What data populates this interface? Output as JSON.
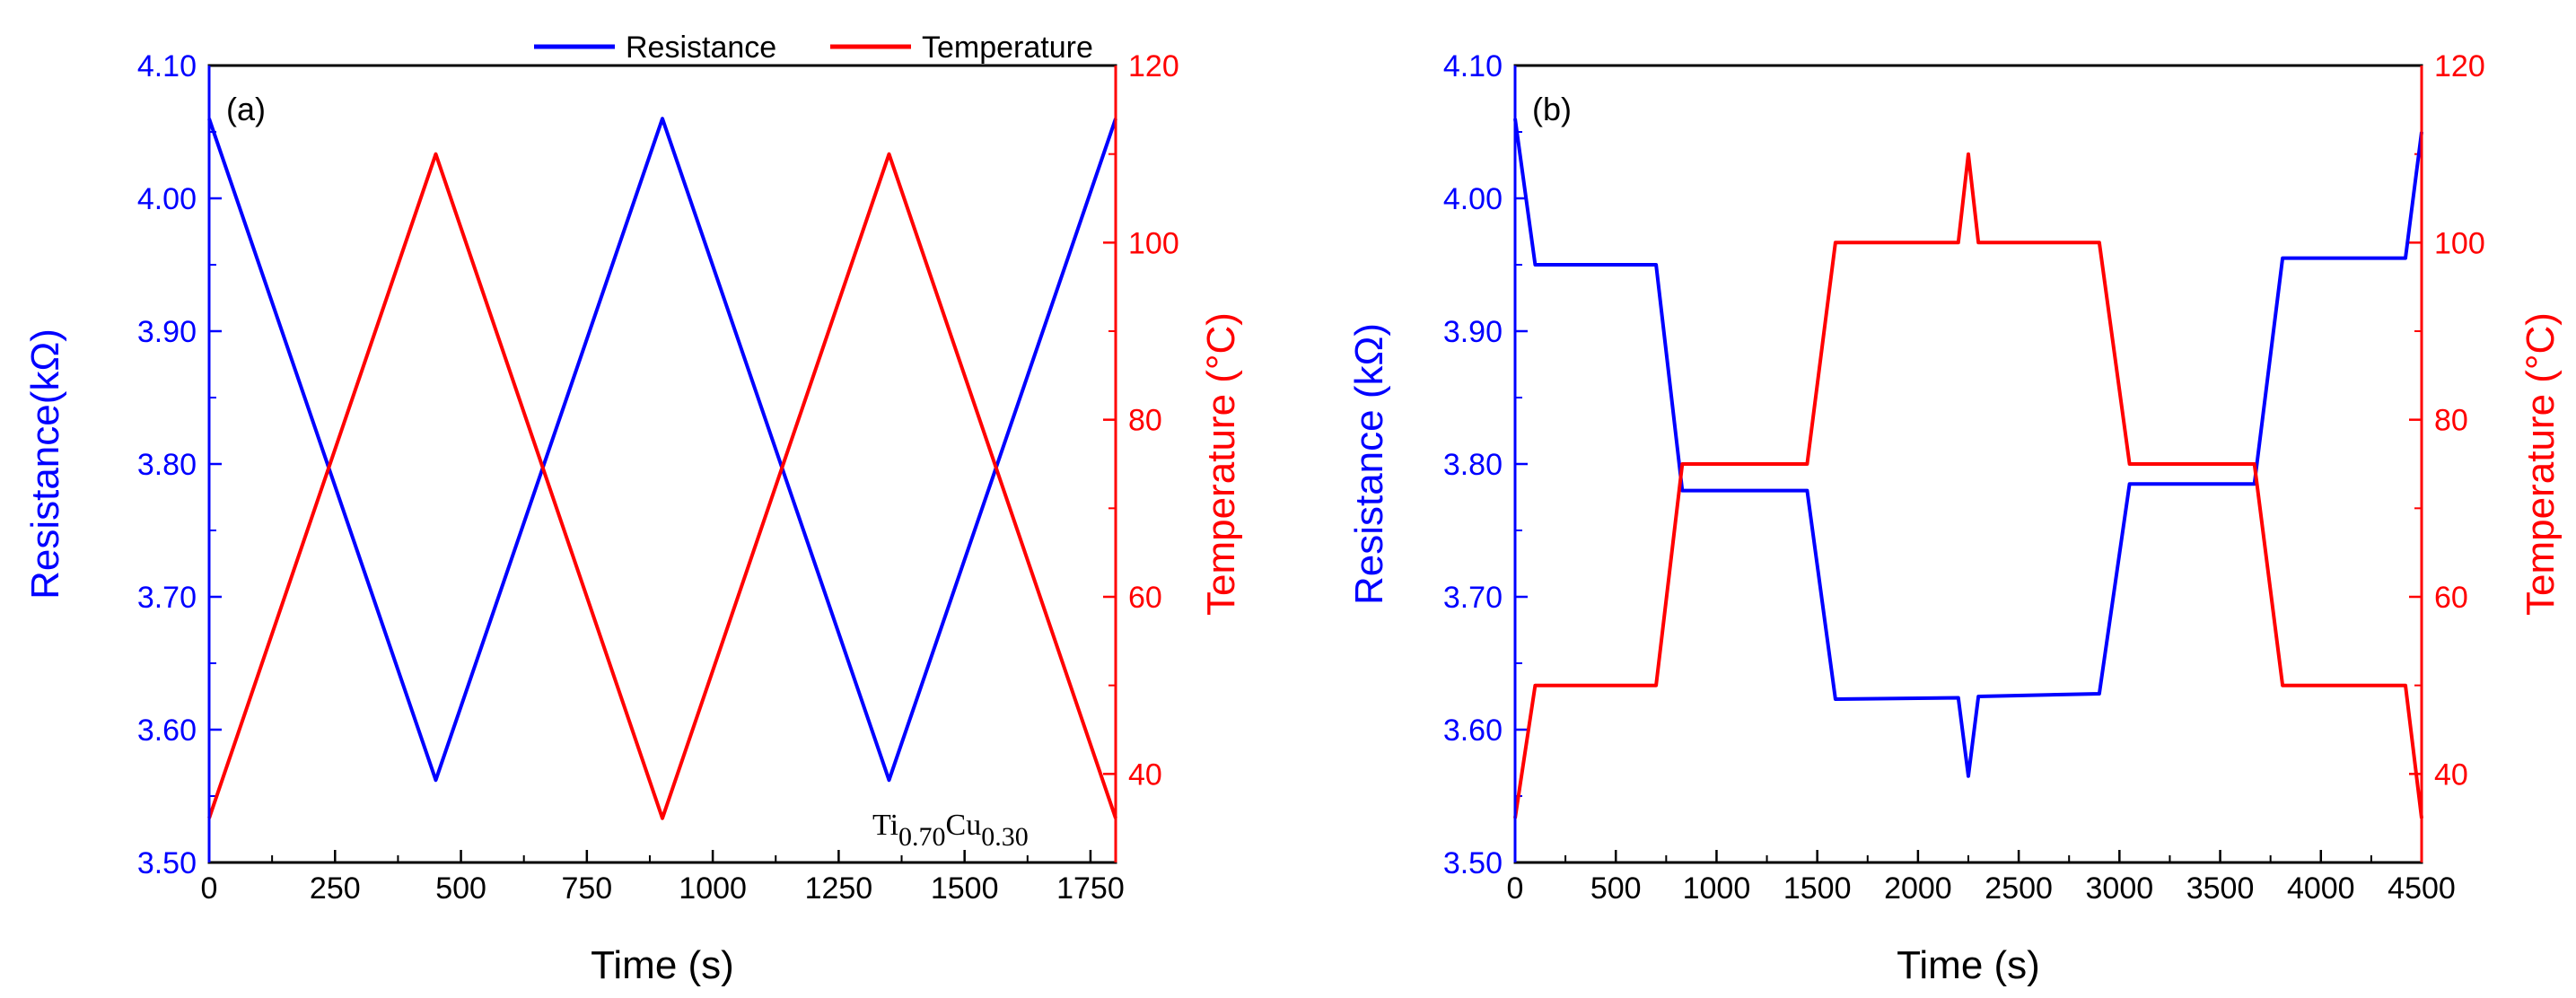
{
  "colors": {
    "resistance": "#0000ff",
    "temperature": "#ff0000",
    "axis": "#000000"
  },
  "legend": {
    "resistance_label": "Resistance",
    "temperature_label": "Temperature"
  },
  "chart_data": [
    {
      "panel_label": "(a)",
      "type": "line",
      "xlabel": "Time (s)",
      "ylabel_left": "Resistance(kΩ)",
      "ylabel_right": "Temperature (°C)",
      "xlim": [
        0,
        1800
      ],
      "ylim_left": [
        3.5,
        4.1
      ],
      "ylim_right": [
        30,
        120
      ],
      "x_ticks": [
        "0",
        "250",
        "500",
        "750",
        "1000",
        "1250",
        "1500",
        "1750"
      ],
      "x_tick_values": [
        0,
        250,
        500,
        750,
        1000,
        1250,
        1500,
        1750
      ],
      "y_left_ticks": [
        "3.50",
        "3.60",
        "3.70",
        "3.80",
        "3.90",
        "4.00",
        "4.10"
      ],
      "y_left_values": [
        3.5,
        3.6,
        3.7,
        3.8,
        3.9,
        4.0,
        4.1
      ],
      "y_right_ticks": [
        "40",
        "60",
        "80",
        "100",
        "120"
      ],
      "y_right_values": [
        40,
        60,
        80,
        100,
        120
      ],
      "annotation": {
        "base": "Ti",
        "sub1": "0.70",
        "mid": "Cu",
        "sub2": "0.30"
      },
      "series": [
        {
          "name": "Resistance",
          "axis": "left",
          "x": [
            0,
            450,
            900,
            1350,
            1800
          ],
          "y": [
            4.06,
            3.562,
            4.06,
            3.562,
            4.06
          ]
        },
        {
          "name": "Temperature",
          "axis": "right",
          "x": [
            0,
            450,
            900,
            1350,
            1800
          ],
          "y": [
            35,
            110,
            35,
            110,
            35
          ]
        }
      ]
    },
    {
      "panel_label": "(b)",
      "type": "line",
      "xlabel": "Time (s)",
      "ylabel_left": "Resistance (kΩ)",
      "ylabel_right": "Temperature (°C)",
      "xlim": [
        0,
        4500
      ],
      "ylim_left": [
        3.5,
        4.1
      ],
      "ylim_right": [
        30,
        120
      ],
      "x_ticks": [
        "0",
        "500",
        "1000",
        "1500",
        "2000",
        "2500",
        "3000",
        "3500",
        "4000",
        "4500"
      ],
      "x_tick_values": [
        0,
        500,
        1000,
        1500,
        2000,
        2500,
        3000,
        3500,
        4000,
        4500
      ],
      "y_left_ticks": [
        "3.50",
        "3.60",
        "3.70",
        "3.80",
        "3.90",
        "4.00",
        "4.10"
      ],
      "y_left_values": [
        3.5,
        3.6,
        3.7,
        3.8,
        3.9,
        4.0,
        4.1
      ],
      "y_right_ticks": [
        "40",
        "60",
        "80",
        "100",
        "120"
      ],
      "y_right_values": [
        40,
        60,
        80,
        100,
        120
      ],
      "series": [
        {
          "name": "Resistance",
          "axis": "left",
          "x": [
            0,
            100,
            700,
            830,
            1450,
            1590,
            2200,
            2250,
            2300,
            2900,
            3050,
            3670,
            3810,
            4420,
            4500
          ],
          "y": [
            4.06,
            3.95,
            3.95,
            3.78,
            3.78,
            3.623,
            3.624,
            3.565,
            3.625,
            3.627,
            3.785,
            3.785,
            3.955,
            3.955,
            4.05
          ]
        },
        {
          "name": "Temperature",
          "axis": "right",
          "x": [
            0,
            100,
            700,
            830,
            1450,
            1590,
            2200,
            2250,
            2300,
            2900,
            3050,
            3670,
            3810,
            4420,
            4500
          ],
          "y": [
            35,
            50,
            50,
            75,
            75,
            100,
            100,
            110,
            100,
            100,
            75,
            75,
            50,
            50,
            35
          ]
        }
      ]
    }
  ]
}
